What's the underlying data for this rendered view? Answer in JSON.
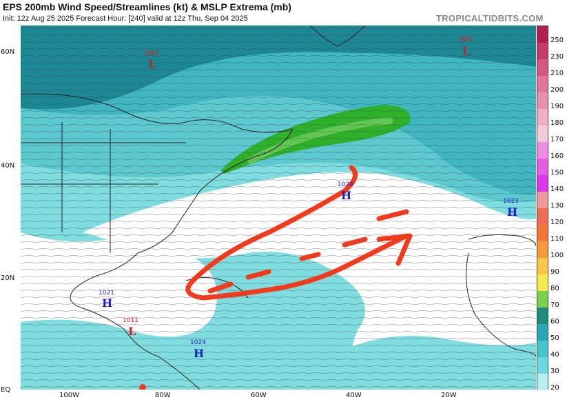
{
  "header": {
    "title": "EPS 200mb Wind Speed/Streamlines (kt) & MSLP Extrema (mb)",
    "subtitle": "Init: 12z Aug 25 2025   Forecast Hour: [240]   valid at 12z Thu, Sep 04 2025",
    "brand": "TROPICALTIDBITS.COM"
  },
  "axes": {
    "lat_labels": [
      "60N",
      "40N",
      "20N",
      "EQ"
    ],
    "lon_labels": [
      "100W",
      "80W",
      "60W",
      "40W",
      "20W"
    ]
  },
  "colorbar": {
    "labels": [
      "250",
      "230",
      "210",
      "200",
      "190",
      "180",
      "170",
      "160",
      "150",
      "140",
      "130",
      "120",
      "110",
      "100",
      "90",
      "80",
      "70",
      "60",
      "50",
      "40",
      "30",
      "20"
    ],
    "colors": [
      "#b0204e",
      "#c43a6a",
      "#d35880",
      "#de7896",
      "#e893ae",
      "#f0b0c8",
      "#f3c9dc",
      "#ee8ce6",
      "#e060e0",
      "#d83ae8",
      "#ee9a9a",
      "#ec6e5a",
      "#f0783c",
      "#f39a3c",
      "#f8c64a",
      "#f3ec4c",
      "#7ad04e",
      "#1f8a7e",
      "#2aa7b3",
      "#46c4cc",
      "#6cd8df",
      "#b8eef2"
    ]
  },
  "pressure_centers": [
    {
      "type": "L",
      "value": "1002",
      "color": "#cc1f1f"
    },
    {
      "type": "L",
      "value": "1001",
      "color": "#cc1f1f"
    },
    {
      "type": "H",
      "value": "1024",
      "color": "#1d1ec4"
    },
    {
      "type": "H",
      "value": "1023",
      "color": "#1d1ec4"
    },
    {
      "type": "H",
      "value": "1021",
      "color": "#1d1ec4"
    },
    {
      "type": "L",
      "value": "1011",
      "color": "#cc1f1f"
    },
    {
      "type": "H",
      "value": "1024",
      "color": "#1d1ec4"
    }
  ],
  "annotation": {
    "color": "#f23a1c",
    "description_shape": "red arrow loop"
  },
  "map_colors": {
    "wind_light": "#7fdde0",
    "wind_mid": "#3fb6c2",
    "wind_dark": "#1e8796",
    "jet_green": "#2fb02a",
    "calm": "#ffffff",
    "coast": "#222222"
  }
}
